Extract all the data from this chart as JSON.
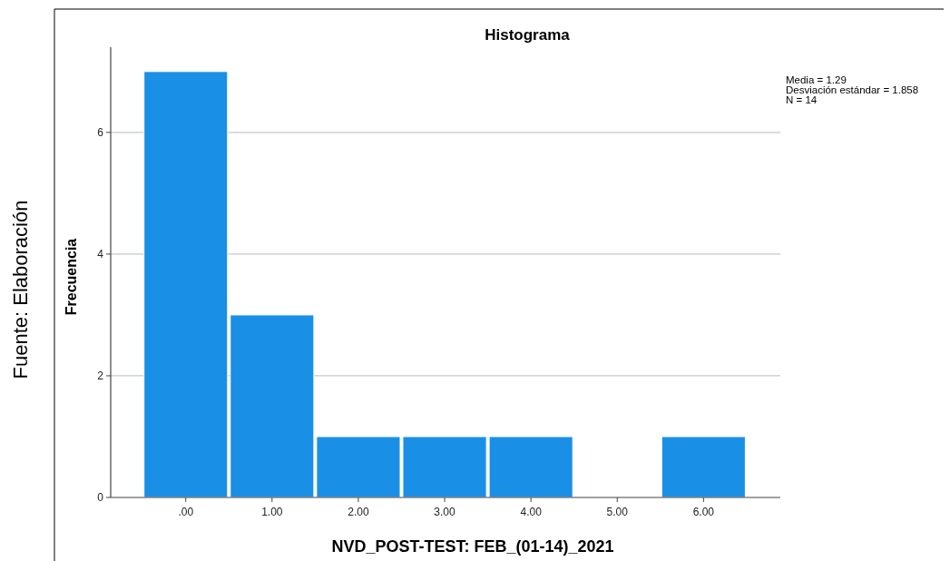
{
  "chart_data": {
    "type": "histogram",
    "title": "Histograma",
    "xlabel": "NVD_POST-TEST: FEB_(01-14)_2021",
    "ylabel": "Frecuencia",
    "bins": [
      -0.5,
      0.5,
      1.5,
      2.5,
      3.5,
      4.5,
      5.5,
      6.5
    ],
    "values": [
      7,
      3,
      1,
      1,
      1,
      0,
      1
    ],
    "color": "#1a8fe6",
    "xlim": [
      -0.87,
      6.89
    ],
    "xticks": [
      {
        "value": 0,
        "label": ".00"
      },
      {
        "value": 1,
        "label": "1.00"
      },
      {
        "value": 2,
        "label": "2.00"
      },
      {
        "value": 3,
        "label": "3.00"
      },
      {
        "value": 4,
        "label": "4.00"
      },
      {
        "value": 5,
        "label": "5.00"
      },
      {
        "value": 6,
        "label": "6.00"
      }
    ],
    "ylim": [
      0,
      7.4
    ],
    "yticks": [
      0,
      2,
      4,
      6
    ],
    "grid": "y",
    "annotations": [
      "Media = 1.29",
      "Desviación estándar = 1.858",
      "N = 14",
      "Fuente: Elaboración"
    ]
  }
}
